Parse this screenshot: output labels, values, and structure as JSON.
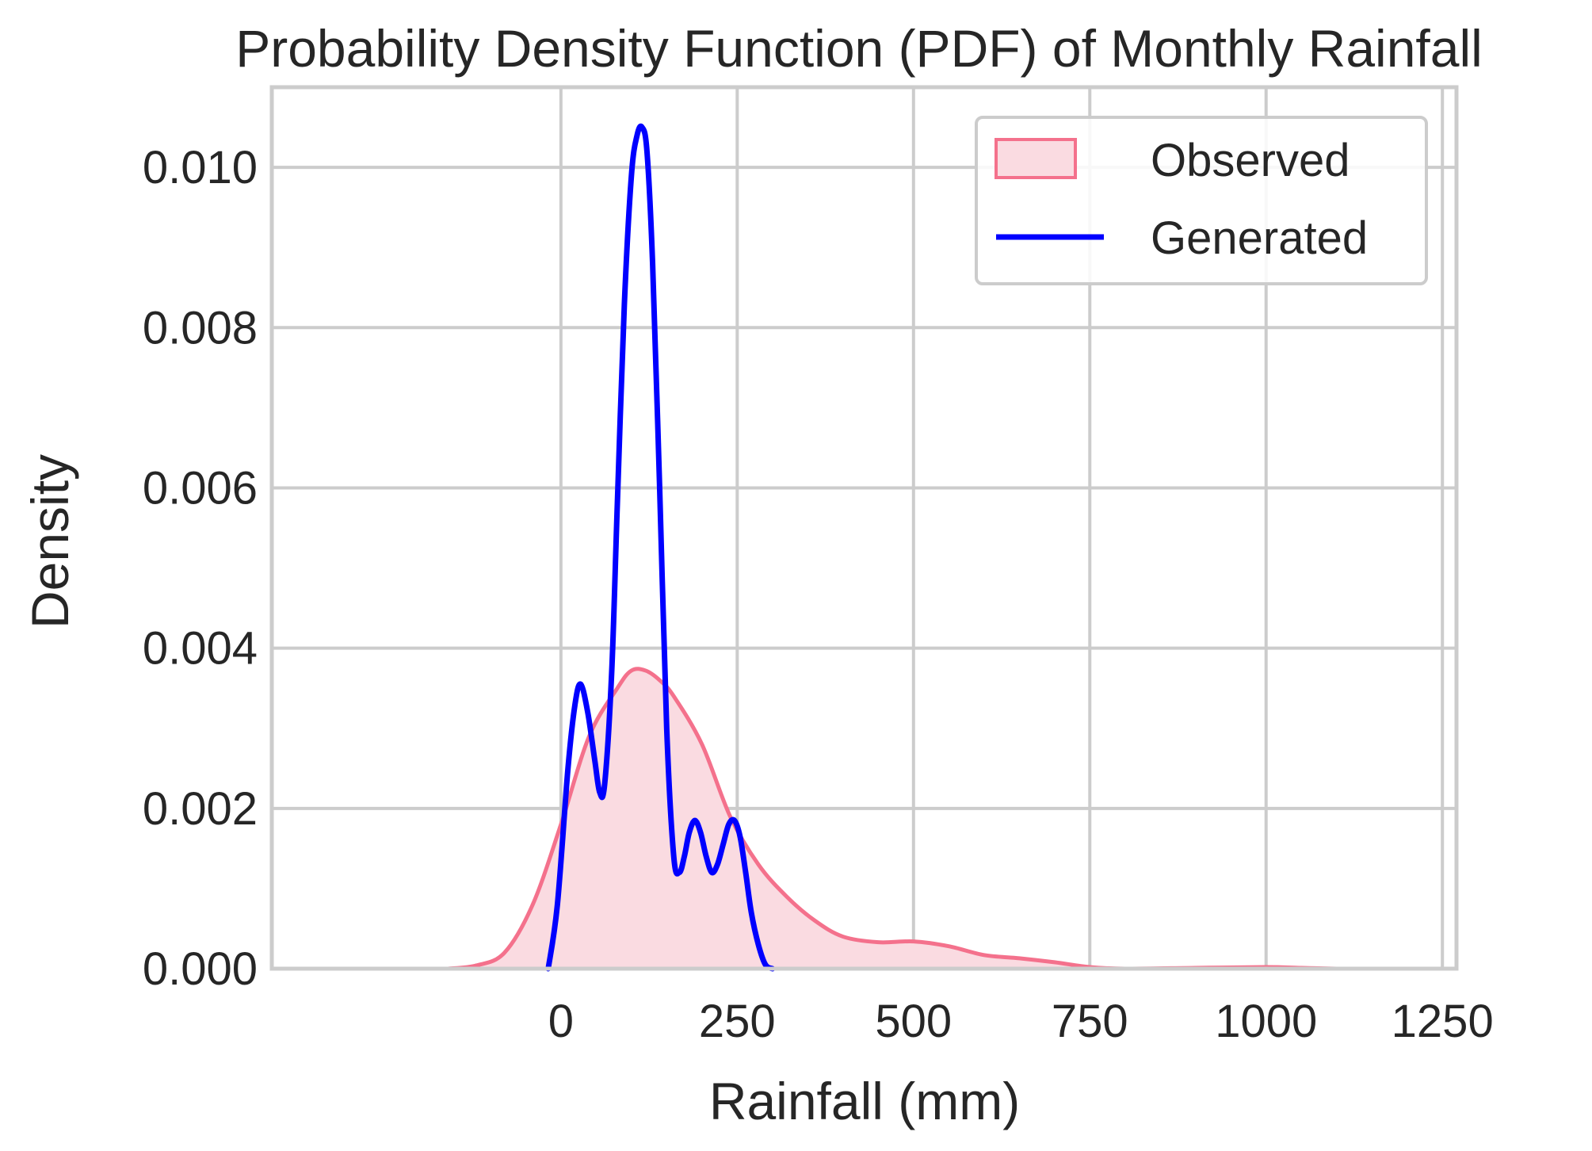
{
  "chart_data": {
    "type": "area",
    "title": "Probability Density Function (PDF) of Monthly Rainfall",
    "xlabel": "Rainfall (mm)",
    "ylabel": "Density",
    "xlim": [
      -410,
      1270
    ],
    "ylim": [
      0,
      0.011
    ],
    "x_ticks": [
      0,
      250,
      500,
      750,
      1000,
      1250
    ],
    "y_ticks": [
      0.0,
      0.002,
      0.004,
      0.006,
      0.008,
      0.01
    ],
    "x_tick_labels": [
      "0",
      "250",
      "500",
      "750",
      "1000",
      "1250"
    ],
    "y_tick_labels": [
      "0.000",
      "0.002",
      "0.004",
      "0.006",
      "0.008",
      "0.010"
    ],
    "grid": true,
    "legend_position": "top-right",
    "legend": [
      "Observed",
      "Generated"
    ],
    "series": [
      {
        "name": "Observed",
        "style": "filled-kde",
        "color": "#f4718c",
        "fill_color": "#fadbe1",
        "x": [
          -160,
          -120,
          -80,
          -40,
          0,
          40,
          80,
          100,
          120,
          140,
          160,
          200,
          240,
          280,
          320,
          360,
          400,
          450,
          500,
          550,
          600,
          650,
          700,
          750,
          800,
          900,
          1000,
          1050,
          1100
        ],
        "y": [
          0.0,
          4e-05,
          0.0002,
          0.0008,
          0.0018,
          0.0029,
          0.0035,
          0.00372,
          0.00372,
          0.0036,
          0.0034,
          0.0028,
          0.0019,
          0.0013,
          0.0009,
          0.0006,
          0.0004,
          0.00033,
          0.00034,
          0.00028,
          0.00017,
          0.00013,
          8e-05,
          2e-05,
          0.0,
          1e-05,
          2e-05,
          1e-05,
          0.0
        ]
      },
      {
        "name": "Generated",
        "style": "line",
        "color": "#0000ff",
        "x": [
          -18,
          -5,
          10,
          20,
          28,
          38,
          48,
          55,
          62,
          72,
          80,
          90,
          100,
          108,
          115,
          122,
          130,
          140,
          150,
          160,
          168,
          175,
          182,
          190,
          198,
          206,
          214,
          222,
          230,
          238,
          246,
          254,
          262,
          270,
          280,
          290,
          300
        ],
        "y": [
          0.0,
          0.0008,
          0.0025,
          0.0033,
          0.00355,
          0.0032,
          0.0026,
          0.0022,
          0.0023,
          0.0037,
          0.0058,
          0.0083,
          0.0099,
          0.0104,
          0.0105,
          0.0102,
          0.0088,
          0.006,
          0.003,
          0.0014,
          0.0012,
          0.0014,
          0.0017,
          0.00185,
          0.0017,
          0.0014,
          0.0012,
          0.0013,
          0.00155,
          0.0018,
          0.00185,
          0.00165,
          0.0012,
          0.0007,
          0.0003,
          5e-05,
          0.0
        ]
      }
    ]
  }
}
